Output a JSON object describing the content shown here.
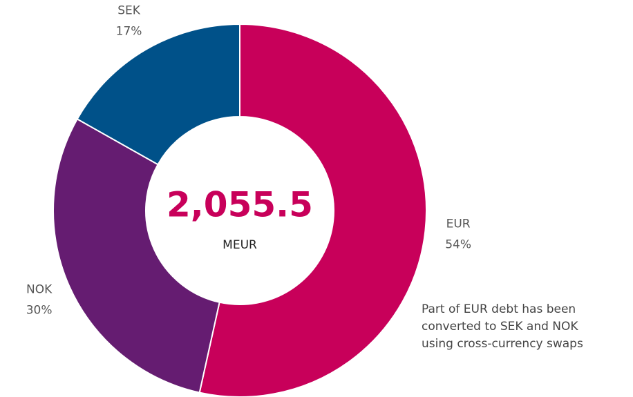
{
  "chart_data": {
    "type": "donut",
    "categories": [
      "EUR",
      "NOK",
      "SEK"
    ],
    "values": [
      54,
      30,
      17
    ],
    "value_labels": [
      "54%",
      "30%",
      "17%"
    ],
    "colors": [
      "#c8005a",
      "#651c71",
      "#005189"
    ],
    "center_label": "2,055.5",
    "center_unit": "MEUR",
    "annotation": [
      "Part of EUR debt has been",
      "converted to SEK and NOK",
      "using cross-currency swaps"
    ]
  }
}
